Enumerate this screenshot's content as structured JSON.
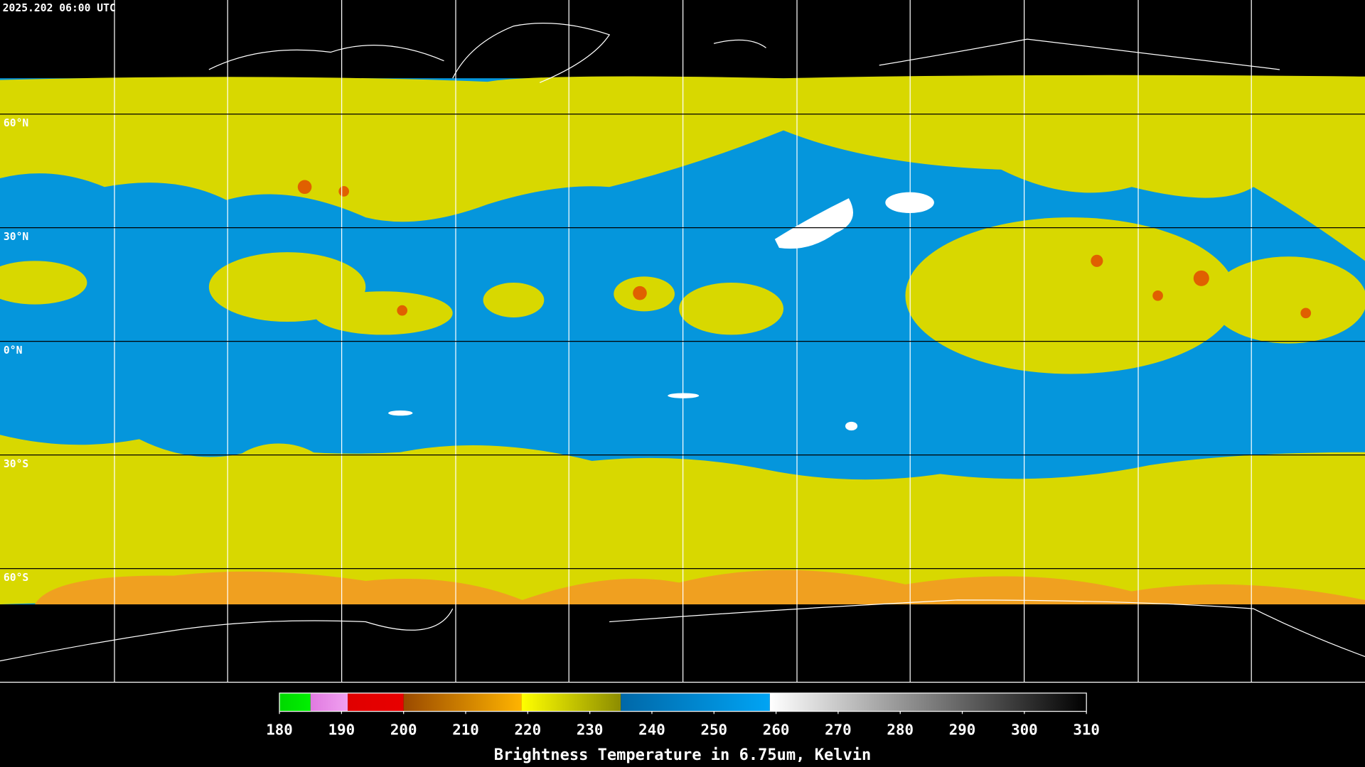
{
  "timestamp": "2025.202 06:00 UTC",
  "map": {
    "ylim": [
      90,
      -90
    ],
    "lat_lines": [
      {
        "value": 60,
        "label": "60°N"
      },
      {
        "value": 30,
        "label": "30°N"
      },
      {
        "value": 0,
        "label": "0°N"
      },
      {
        "value": -30,
        "label": "30°S"
      },
      {
        "value": -60,
        "label": "60°S"
      }
    ]
  },
  "colorbar": {
    "title": "Brightness Temperature in 6.75um, Kelvin",
    "lim": [
      180,
      310
    ],
    "ticks": [
      180,
      190,
      200,
      210,
      220,
      230,
      240,
      250,
      260,
      270,
      280,
      290,
      300,
      310
    ],
    "segments": [
      {
        "from": 180,
        "to": 185,
        "colors": [
          "#00d800",
          "#00f000"
        ]
      },
      {
        "from": 185,
        "to": 191,
        "colors": [
          "#e07ae0",
          "#f0a0f0"
        ]
      },
      {
        "from": 191,
        "to": 200,
        "colors": [
          "#e00000",
          "#e80000"
        ]
      },
      {
        "from": 200,
        "to": 219,
        "colors": [
          "#9a4a00",
          "#ffb400"
        ]
      },
      {
        "from": 219,
        "to": 235,
        "colors": [
          "#ffff00",
          "#8c8c00"
        ]
      },
      {
        "from": 235,
        "to": 259,
        "colors": [
          "#0068a8",
          "#00a4f4"
        ]
      },
      {
        "from": 259,
        "to": 310,
        "colors": [
          "#ffffff",
          "#000000"
        ]
      }
    ]
  }
}
